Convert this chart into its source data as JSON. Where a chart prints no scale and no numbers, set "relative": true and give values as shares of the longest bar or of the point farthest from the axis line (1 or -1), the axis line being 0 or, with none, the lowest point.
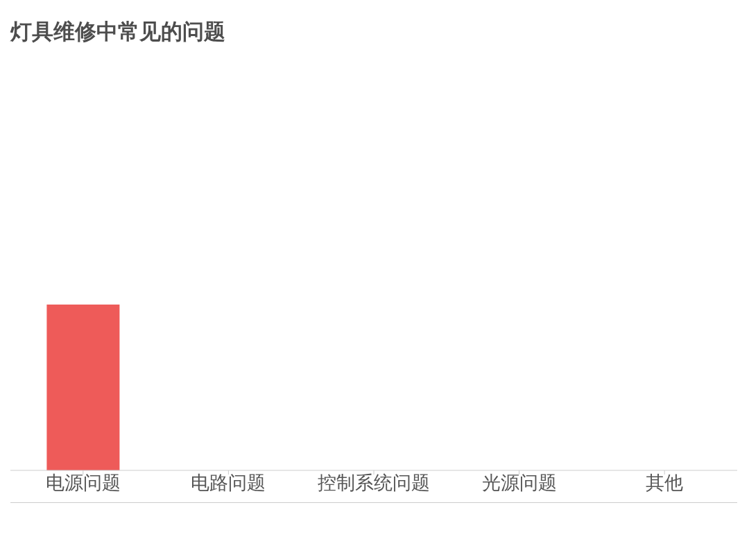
{
  "chart_data": {
    "type": "bar",
    "title": "灯具维修中常见的问题",
    "categories": [
      "电源问题",
      "电路问题",
      "控制系统问题",
      "光源问题",
      "其他"
    ],
    "values": [
      1,
      0,
      0,
      0,
      0
    ],
    "color": "#ee5b59",
    "relative": true
  }
}
